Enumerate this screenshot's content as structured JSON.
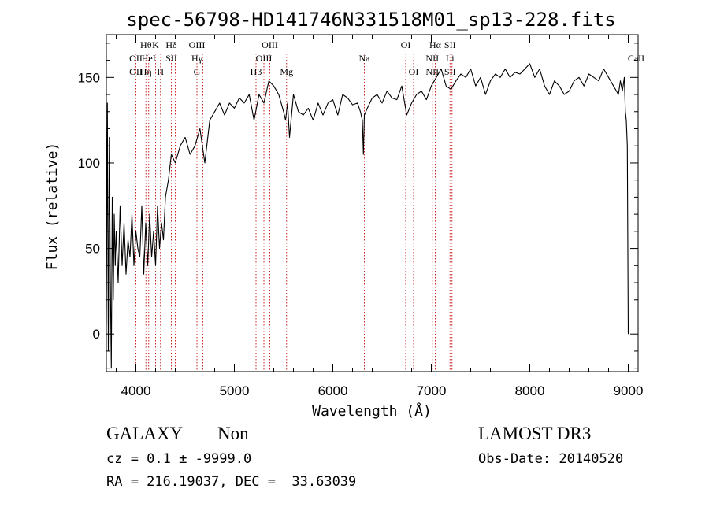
{
  "chart_data": {
    "type": "line",
    "title": "spec-56798-HD141746N331518M01_sp13-228.fits",
    "xlabel": "Wavelength (Å)",
    "ylabel": "Flux (relative)",
    "xlim": [
      3700,
      9100
    ],
    "ylim": [
      -22,
      175
    ],
    "xticks": [
      4000,
      5000,
      6000,
      7000,
      8000,
      9000
    ],
    "yticks": [
      0,
      50,
      100,
      150
    ],
    "series": [
      {
        "x": [
          3700,
          3710,
          3720,
          3730,
          3740,
          3750,
          3760,
          3770,
          3780,
          3790,
          3800,
          3820,
          3840,
          3860,
          3880,
          3900,
          3920,
          3940,
          3960,
          3980,
          4000,
          4020,
          4040,
          4060,
          4080,
          4100,
          4120,
          4140,
          4160,
          4180,
          4200,
          4220,
          4240,
          4260,
          4280,
          4300,
          4330,
          4360,
          4400,
          4450,
          4500,
          4550,
          4600,
          4650,
          4700,
          4750,
          4800,
          4850,
          4900,
          4950,
          5000,
          5050,
          5100,
          5150,
          5200,
          5250,
          5300,
          5350,
          5400,
          5450,
          5500,
          5520,
          5540,
          5560,
          5600,
          5650,
          5700,
          5750,
          5800,
          5850,
          5900,
          5950,
          6000,
          6050,
          6100,
          6150,
          6200,
          6250,
          6280,
          6300,
          6310,
          6320,
          6350,
          6400,
          6450,
          6500,
          6550,
          6600,
          6650,
          6700,
          6750,
          6800,
          6850,
          6900,
          6950,
          7000,
          7030,
          7050,
          7100,
          7150,
          7200,
          7250,
          7300,
          7350,
          7400,
          7450,
          7500,
          7550,
          7600,
          7650,
          7700,
          7750,
          7800,
          7850,
          7900,
          7950,
          8000,
          8050,
          8100,
          8150,
          8200,
          8250,
          8300,
          8350,
          8400,
          8450,
          8500,
          8550,
          8600,
          8650,
          8700,
          8750,
          8800,
          8850,
          8900,
          8920,
          8940,
          8960,
          8970,
          8980,
          8990,
          9000
        ],
        "y": [
          5,
          135,
          -10,
          115,
          35,
          -20,
          80,
          20,
          70,
          40,
          60,
          30,
          75,
          40,
          65,
          35,
          55,
          45,
          70,
          40,
          60,
          50,
          45,
          75,
          35,
          65,
          40,
          70,
          45,
          60,
          40,
          75,
          50,
          65,
          55,
          80,
          90,
          105,
          100,
          110,
          115,
          105,
          110,
          120,
          100,
          125,
          130,
          135,
          128,
          135,
          132,
          138,
          135,
          140,
          125,
          140,
          135,
          148,
          145,
          140,
          130,
          125,
          135,
          115,
          140,
          130,
          128,
          132,
          125,
          135,
          128,
          135,
          137,
          128,
          140,
          138,
          134,
          135,
          130,
          125,
          105,
          128,
          132,
          138,
          140,
          135,
          142,
          138,
          137,
          145,
          128,
          135,
          140,
          142,
          137,
          145,
          148,
          150,
          155,
          145,
          143,
          148,
          152,
          150,
          155,
          145,
          150,
          140,
          148,
          152,
          150,
          155,
          150,
          153,
          152,
          155,
          158,
          150,
          155,
          145,
          140,
          148,
          145,
          140,
          142,
          148,
          150,
          145,
          152,
          150,
          148,
          155,
          150,
          145,
          140,
          148,
          142,
          150,
          130,
          125,
          110,
          0
        ]
      }
    ],
    "lines": [
      {
        "x": 4000,
        "labels": [
          "OII",
          "OII"
        ],
        "rows": [
          1,
          2
        ]
      },
      {
        "x": 4102,
        "labels": [
          "Hθ",
          "Hη"
        ],
        "rows": [
          0,
          2
        ]
      },
      {
        "x": 4130,
        "labels": [
          "HeI"
        ],
        "rows": [
          1
        ]
      },
      {
        "x": 4200,
        "labels": [
          "K"
        ],
        "rows": [
          0
        ]
      },
      {
        "x": 4250,
        "labels": [
          "H"
        ],
        "rows": [
          2
        ]
      },
      {
        "x": 4360,
        "labels": [
          "Hδ",
          "SII"
        ],
        "rows": [
          0,
          1
        ]
      },
      {
        "x": 4400,
        "labels": [],
        "rows": []
      },
      {
        "x": 4620,
        "labels": [
          "OIII",
          "Hγ",
          "G"
        ],
        "rows": [
          0,
          1,
          2
        ]
      },
      {
        "x": 4680,
        "labels": [],
        "rows": []
      },
      {
        "x": 5220,
        "labels": [
          "Hβ"
        ],
        "rows": [
          2
        ]
      },
      {
        "x": 5300,
        "labels": [
          "OIII"
        ],
        "rows": [
          1
        ]
      },
      {
        "x": 5360,
        "labels": [
          "OIII"
        ],
        "rows": [
          0
        ]
      },
      {
        "x": 5530,
        "labels": [
          "Mg"
        ],
        "rows": [
          2
        ]
      },
      {
        "x": 6320,
        "labels": [
          "Na"
        ],
        "rows": [
          1
        ]
      },
      {
        "x": 6740,
        "labels": [
          "OI"
        ],
        "rows": [
          0
        ]
      },
      {
        "x": 6820,
        "labels": [
          "OI"
        ],
        "rows": [
          2
        ]
      },
      {
        "x": 7010,
        "labels": [
          "NII",
          "NII"
        ],
        "rows": [
          1,
          2
        ]
      },
      {
        "x": 7040,
        "labels": [
          "Hα"
        ],
        "rows": [
          0
        ]
      },
      {
        "x": 7190,
        "labels": [
          "SII",
          "Li",
          "SII"
        ],
        "rows": [
          0,
          1,
          2
        ]
      },
      {
        "x": 7210,
        "labels": [],
        "rows": []
      }
    ],
    "extra_labels": [
      {
        "x": 9000,
        "text": "CaII",
        "row": 1
      }
    ]
  },
  "info": {
    "class": "GALAXY",
    "subclass": "Non",
    "survey": "LAMOST DR3",
    "cz": "cz = 0.1 ± -9999.0",
    "obs_date": "Obs-Date: 20140520",
    "coords": "RA = 216.19037, DEC =  33.63039"
  }
}
